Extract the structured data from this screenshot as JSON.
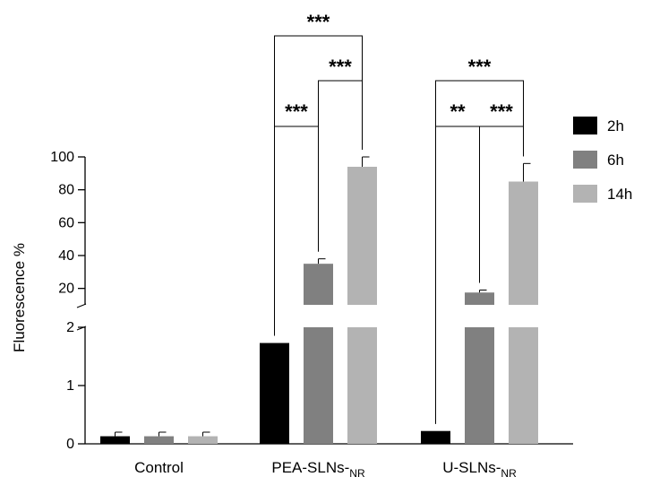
{
  "chart_data": {
    "type": "bar",
    "ylabel": "Fluorescence %",
    "y_axis_break": {
      "lower_range": [
        0,
        2
      ],
      "upper_range": [
        10,
        100
      ]
    },
    "lower_ticks": [
      "0",
      "1",
      "2"
    ],
    "upper_ticks": [
      "20",
      "40",
      "60",
      "80",
      "100"
    ],
    "categories": [
      {
        "main": "Control",
        "sub": ""
      },
      {
        "main": "PEA-SLNs-",
        "sub": "NR"
      },
      {
        "main": "U-SLNs-",
        "sub": "NR"
      }
    ],
    "series": [
      {
        "name": "2h",
        "color": "#000000",
        "values": [
          0.13,
          1.73,
          0.22
        ],
        "errors": [
          0.07,
          0,
          0
        ]
      },
      {
        "name": "6h",
        "color": "#808080",
        "values": [
          0.13,
          35,
          17.5
        ],
        "errors": [
          0.07,
          3,
          1.5
        ]
      },
      {
        "name": "14h",
        "color": "#b3b3b3",
        "values": [
          0.13,
          94,
          85
        ],
        "errors": [
          0.07,
          6,
          11
        ]
      }
    ],
    "significance": [
      {
        "group": 1,
        "from": 0,
        "to": 1,
        "label": "***"
      },
      {
        "group": 1,
        "from": 1,
        "to": 2,
        "label": "***"
      },
      {
        "group": 1,
        "from": 0,
        "to": 2,
        "label": "***"
      },
      {
        "group": 2,
        "from": 0,
        "to": 1,
        "label": "**"
      },
      {
        "group": 2,
        "from": 1,
        "to": 2,
        "label": "***"
      },
      {
        "group": 2,
        "from": 0,
        "to": 2,
        "label": "***"
      }
    ],
    "legend_position": "right"
  }
}
